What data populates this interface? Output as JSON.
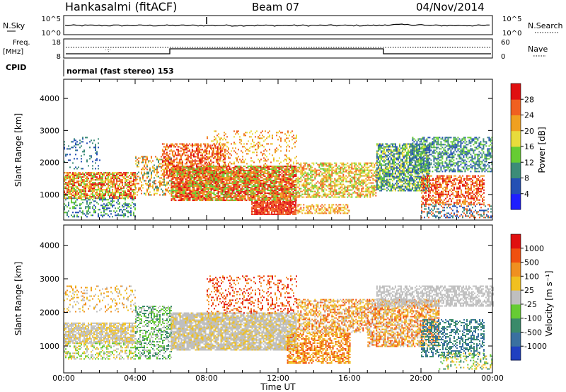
{
  "header": {
    "station": "Hankasalmi (fitACF)",
    "beam": "Beam 07",
    "date": "04/Nov/2014"
  },
  "panels": {
    "noise": {
      "left_label": "N.Sky",
      "right_label": "N.Search",
      "left_ticks": [
        "10^5",
        "10^0"
      ],
      "right_ticks": [
        "10^5",
        "10^0"
      ]
    },
    "freq": {
      "left_label_1": "Freq.",
      "left_label_2": "[MHz]",
      "left_ticks": [
        "18",
        "8"
      ],
      "right_label": "Nave",
      "right_ticks": [
        "60",
        "0"
      ]
    },
    "cpid": {
      "label": "CPID",
      "text": "normal (fast stereo) 153"
    }
  },
  "chart_data": [
    {
      "type": "heatmap",
      "title": "",
      "xlabel": "Time UT",
      "ylabel": "Slant Range [km]",
      "x_ticks": [
        "00:00",
        "04:00",
        "08:00",
        "12:00",
        "16:00",
        "20:00",
        "00:00"
      ],
      "y_ticks": [
        "1000",
        "2000",
        "3000",
        "4000"
      ],
      "ylim": [
        200,
        4600
      ],
      "colorbar": {
        "label": "Power [dB]",
        "ticks": [
          "4",
          "8",
          "12",
          "16",
          "20",
          "24",
          "28"
        ],
        "colors": [
          "#1f1fff",
          "#2450b4",
          "#3c8c78",
          "#66cc33",
          "#e8dc3c",
          "#f0a020",
          "#f06020",
          "#e01010"
        ]
      }
    },
    {
      "type": "heatmap",
      "title": "",
      "xlabel": "Time UT",
      "ylabel": "Slant Range [km]",
      "x_ticks": [
        "00:00",
        "04:00",
        "08:00",
        "12:00",
        "16:00",
        "20:00",
        "00:00"
      ],
      "y_ticks": [
        "1000",
        "2000",
        "3000",
        "4000"
      ],
      "ylim": [
        200,
        4600
      ],
      "colorbar": {
        "label": "Velocity [m s⁻¹]",
        "ticks": [
          "1000",
          "500",
          "100",
          "25",
          "-25",
          "-100",
          "-500",
          "-1000"
        ],
        "colors": [
          "#2040c0",
          "#3a70a0",
          "#3a8a6a",
          "#66cc33",
          "#bfbfbf",
          "#f0c020",
          "#f09020",
          "#f05010",
          "#e01010"
        ]
      }
    }
  ]
}
